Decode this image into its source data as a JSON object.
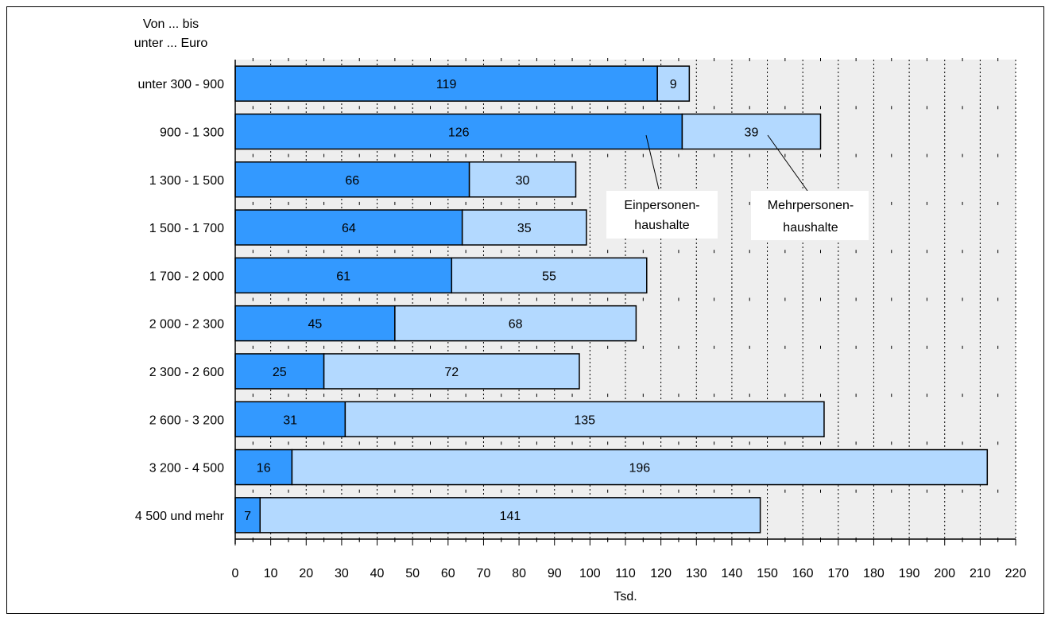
{
  "chart_data": {
    "type": "bar",
    "orientation": "horizontal",
    "stacked": true,
    "category_axis_title_line1": "Von ... bis",
    "category_axis_title_line2": "unter ... Euro",
    "categories": [
      "unter 300 - 900",
      "900 - 1 300",
      "1 300 - 1 500",
      "1 500 - 1 700",
      "1 700 - 2 000",
      "2 000 - 2 300",
      "2 300 - 2 600",
      "2 600 - 3 200",
      "3 200 - 4 500",
      "4 500 und mehr"
    ],
    "series": [
      {
        "name": "Einpersonen-haushalte",
        "label_line1": "Einpersonen-",
        "label_line2": "haushalte",
        "color": "#3399ff",
        "values": [
          119,
          126,
          66,
          64,
          61,
          45,
          25,
          31,
          16,
          7
        ]
      },
      {
        "name": "Mehrpersonen-haushalte",
        "label_line1": "Mehrpersonen-",
        "label_line2": "haushalte",
        "color": "#b3d9ff",
        "values": [
          9,
          39,
          30,
          35,
          55,
          68,
          72,
          135,
          196,
          141
        ]
      }
    ],
    "xlabel": "Tsd.",
    "xlim": [
      0,
      220
    ],
    "xticks": [
      0,
      10,
      20,
      30,
      40,
      50,
      60,
      70,
      80,
      90,
      100,
      110,
      120,
      130,
      140,
      150,
      160,
      170,
      180,
      190,
      200,
      210,
      220
    ],
    "grid": "vertical dotted",
    "plot_background": "#eeeeee"
  }
}
